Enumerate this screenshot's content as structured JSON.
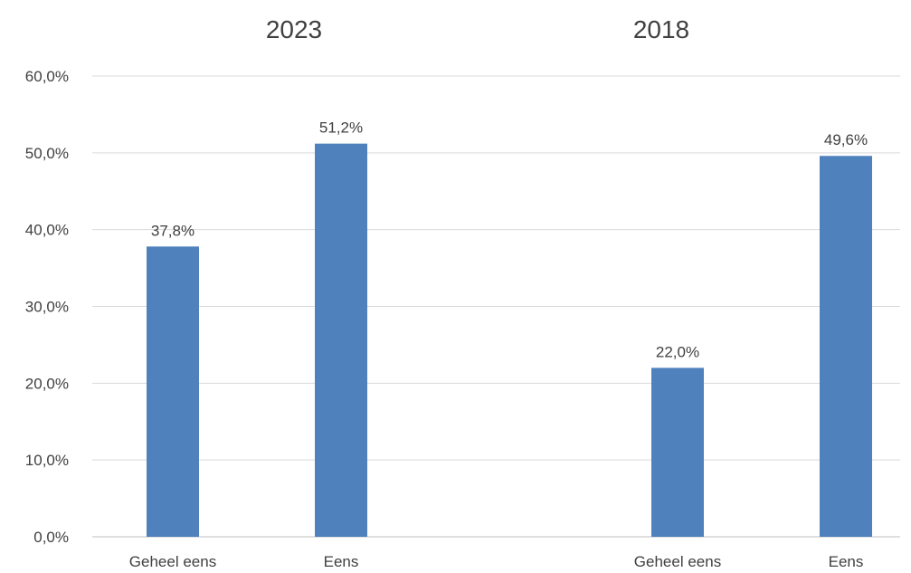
{
  "chart_data": [
    {
      "type": "bar",
      "title": "2023",
      "categories": [
        "Geheel eens",
        "Eens"
      ],
      "values": [
        37.8,
        51.2
      ],
      "data_labels": [
        "37,8%",
        "51,2%"
      ],
      "ylim": [
        0,
        60
      ],
      "yticks": [
        "0,0%",
        "10,0%",
        "20,0%",
        "30,0%",
        "40,0%",
        "50,0%",
        "60,0%"
      ],
      "grid": true,
      "legend": "none"
    },
    {
      "type": "bar",
      "title": "2018",
      "categories": [
        "Geheel eens",
        "Eens"
      ],
      "values": [
        22.0,
        49.6
      ],
      "data_labels": [
        "22,0%",
        "49,6%"
      ],
      "ylim": [
        0,
        60
      ],
      "grid": true,
      "legend": "none"
    }
  ],
  "colors": {
    "bar": "#4f81bd",
    "grid": "#d9d9d9",
    "text": "#404040"
  }
}
